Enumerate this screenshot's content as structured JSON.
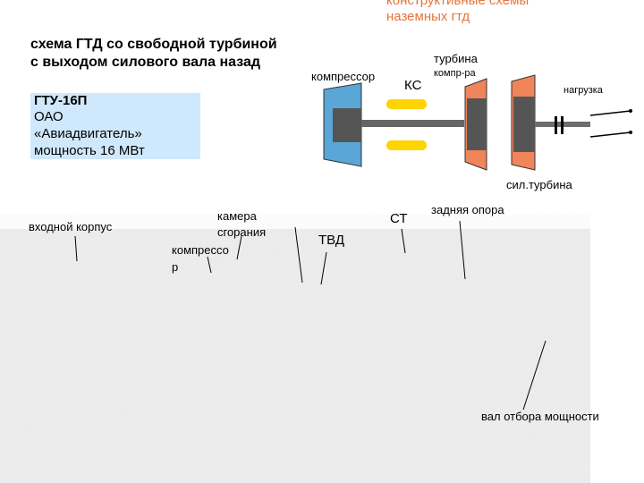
{
  "header": {
    "title_line1": "конструктивные схемы",
    "title_line2": "наземных гтд"
  },
  "schema_title": {
    "line1": "схема ГТД со свободной турбиной",
    "line2": "с выходом силового вала назад"
  },
  "info": {
    "model": "ГТУ-16П",
    "org": "ОАО",
    "company": "«Авиадвигатель»",
    "power": "мощность 16 МВт"
  },
  "diagram": {
    "compressor_label": "компрессор",
    "ks_label": "КС",
    "turbine_label_line1": "турбина",
    "turbine_label_line2": "компр-ра",
    "load_label": "нагрузка",
    "power_turbine_label": "сил.турбина"
  },
  "photo_labels": {
    "inlet_casing": "входной корпус",
    "combustion_line1": "камера",
    "combustion_line2": "сгорания",
    "compressor_line1": "компрессо",
    "compressor_line2": "р",
    "tvd": "ТВД",
    "st": "СТ",
    "rear_support": "задняя опора",
    "pto_shaft": "вал отбора мощности"
  },
  "colors": {
    "compressor_blue": "#5aa6d6",
    "turbine_orange": "#f0845a",
    "ks_yellow": "#ffd400",
    "shaft_gray": "#6e6e6e",
    "title_orange": "#e8743a",
    "info_bg": "#cfe8fb"
  }
}
